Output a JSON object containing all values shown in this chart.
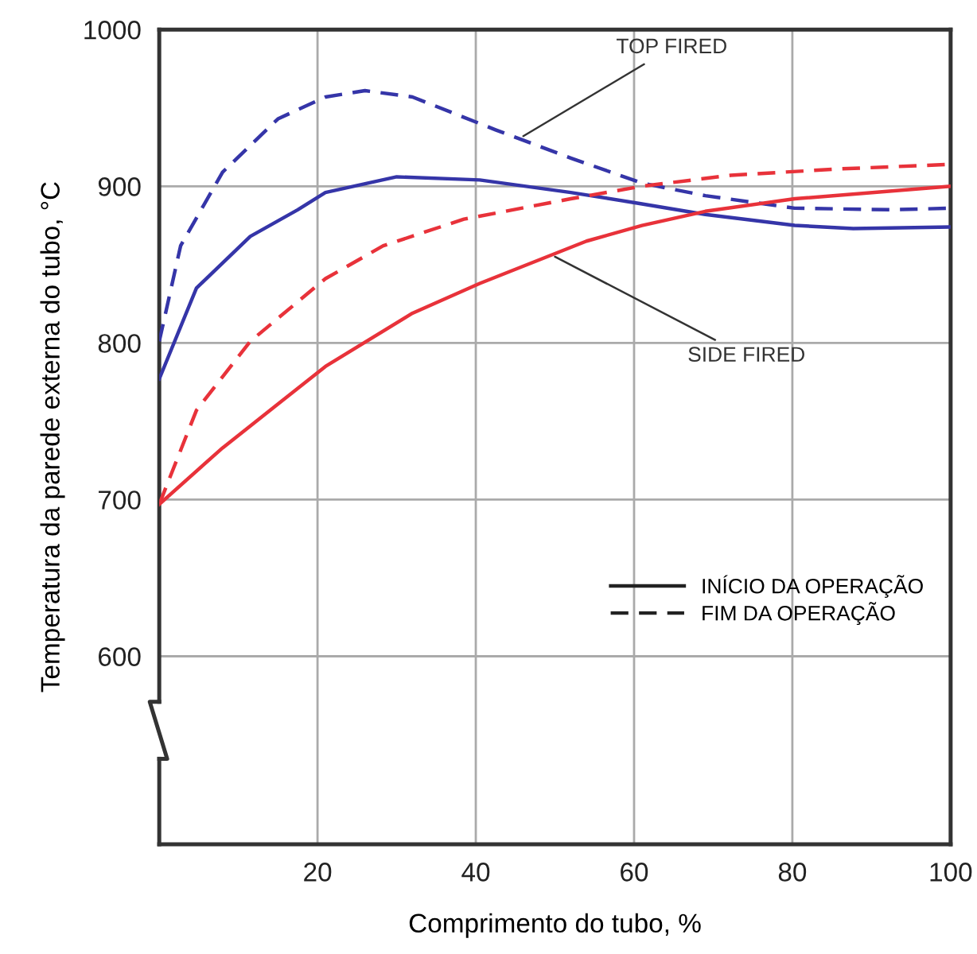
{
  "chart_data": {
    "type": "line",
    "xlabel": "Comprimento do tubo, %",
    "ylabel": "Temperatura da parede externa do tubo, °C",
    "xlim": [
      0,
      100
    ],
    "ylim": [
      480,
      1000
    ],
    "xticks": [
      20,
      40,
      60,
      80,
      100
    ],
    "yticks": [
      600,
      700,
      800,
      900,
      1000
    ],
    "grid": true,
    "marker": "none",
    "series": [
      {
        "color": "#3535a8",
        "line_style": "solid",
        "x": [
          0,
          4.7,
          11.5,
          17.5,
          21,
          30,
          40.5,
          52,
          60.7,
          69,
          80.3,
          87.7,
          100
        ],
        "values": [
          777,
          835,
          868,
          885,
          896,
          906,
          904,
          896,
          889,
          882,
          875,
          873,
          874
        ]
      },
      {
        "color": "#3535a8",
        "line_style": "dashed",
        "x": [
          0,
          2.7,
          8,
          15,
          21,
          26,
          32,
          42.5,
          52,
          61,
          69,
          80.3,
          92.4,
          100
        ],
        "values": [
          801,
          862,
          909,
          943,
          957,
          961,
          957,
          936,
          918,
          902,
          894,
          886,
          885,
          886
        ]
      },
      {
        "color": "#e8323a",
        "line_style": "solid",
        "x": [
          0,
          8,
          21,
          32,
          40.5,
          54,
          61,
          69,
          80.3,
          100
        ],
        "values": [
          697,
          733,
          785,
          819,
          838,
          865,
          875,
          884,
          892,
          900
        ]
      },
      {
        "color": "#e8323a",
        "line_style": "dashed",
        "x": [
          0,
          4.7,
          11.5,
          21,
          28.3,
          38.5,
          52,
          61,
          72.2,
          85.7,
          100
        ],
        "values": [
          697,
          757,
          801,
          841,
          862,
          879,
          892,
          900,
          907,
          911,
          914
        ]
      }
    ],
    "annotations": [
      {
        "text": "TOP FIRED",
        "x": 46,
        "y": 932
      },
      {
        "text": "SIDE FIRED",
        "x": 50,
        "y": 855
      },
      "INÍCIO DA OPERAÇÃO",
      "FIM DA OPERAÇÃO"
    ]
  }
}
